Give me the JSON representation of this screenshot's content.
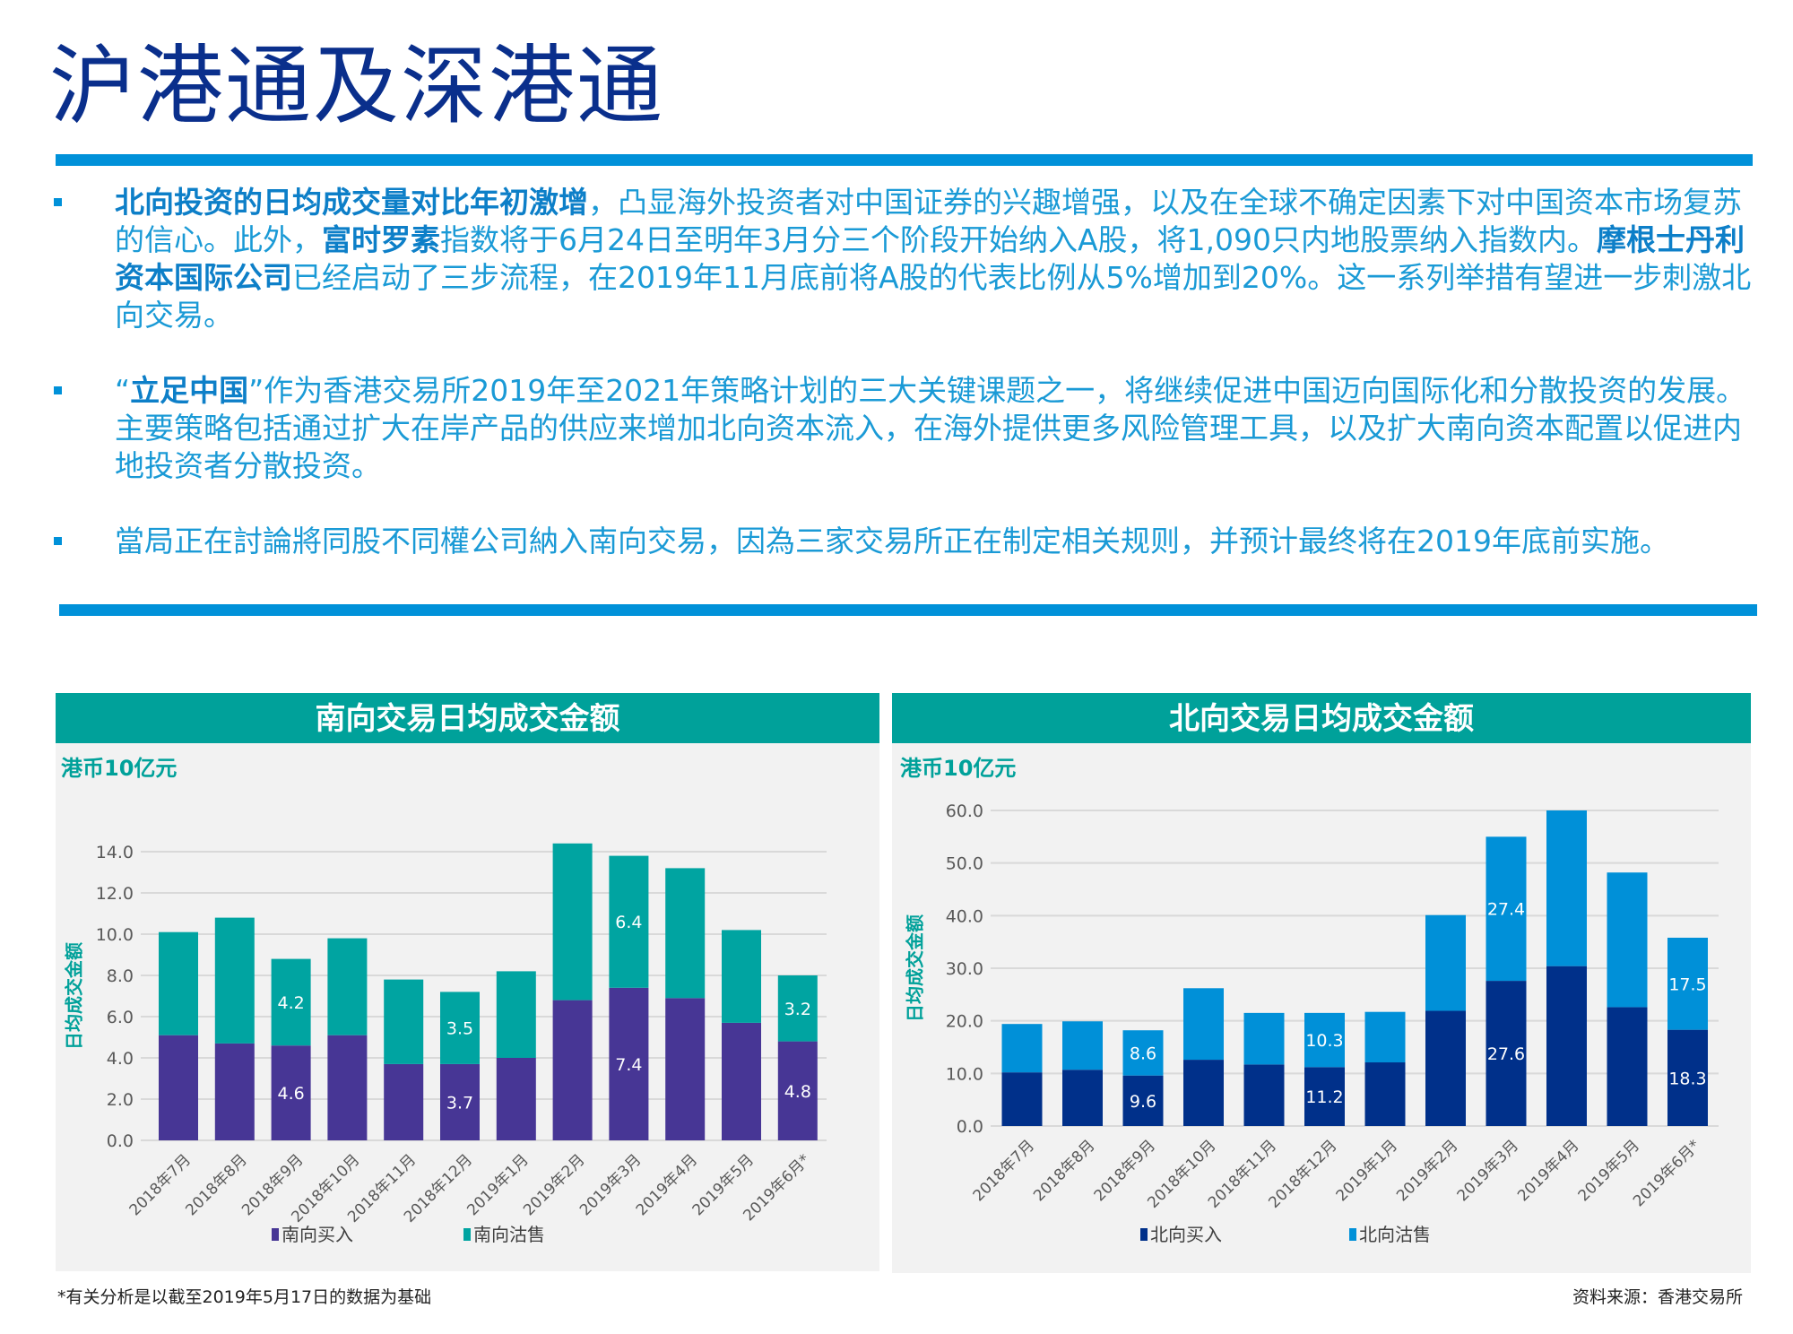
{
  "title": "沪港通及深港通",
  "bullets": [
    {
      "segments": [
        {
          "text": "北向投资的日均成交量对比年初激增",
          "bold": true
        },
        {
          "text": "，凸显海外投资者对中国证券的兴趣增强，以及在全球不确定因素下对中国资本市场复苏的信心。此外，",
          "bold": false
        },
        {
          "text": "富时罗素",
          "bold": true
        },
        {
          "text": "指数将于6月24日至明年3月分三个阶段开始纳入A股，将1,090只内地股票纳入指数内。",
          "bold": false
        },
        {
          "text": "摩根士丹利资本国际公司",
          "bold": true
        },
        {
          "text": "已经启动了三步流程，在2019年11月底前将A股的代表比例从5%增加到20%。这一系列举措有望进一步刺激北向交易。",
          "bold": false
        }
      ]
    },
    {
      "segments": [
        {
          "text": "“",
          "bold": false
        },
        {
          "text": "立足中国",
          "bold": true
        },
        {
          "text": "”作为香港交易所2019年至2021年策略计划的三大关键课题之一，将继续促进中国迈向国际化和分散投资的发展。主要策略包括通过扩大在岸产品的供应来增加北向资本流入，在海外提供更多风险管理工具，以及扩大南向资本配置以促进内地投资者分散投资。",
          "bold": false
        }
      ]
    },
    {
      "segments": [
        {
          "text": "當局正在討論將同股不同權公司納入南向交易，因為三家交易所正在制定相关规则，并预计最终将在2019年底前实施。",
          "bold": false
        }
      ]
    }
  ],
  "colors": {
    "title": "#0a2f8c",
    "rule": "#0091d9",
    "panel_header": "#00a19a",
    "text": "#1a9ad6"
  },
  "chart_data": [
    {
      "type": "bar",
      "stacked": true,
      "title": "南向交易日均成交金额",
      "unit": "港币10亿元",
      "ylabel": "日均成交金额",
      "ylim": [
        0,
        14
      ],
      "yticks": [
        "0.0",
        "2.0",
        "4.0",
        "6.0",
        "8.0",
        "10.0",
        "12.0",
        "14.0"
      ],
      "grid": true,
      "legend": "bottom",
      "categories": [
        "2018年7月",
        "2018年8月",
        "2018年9月",
        "2018年10月",
        "2018年11月",
        "2018年12月",
        "2019年1月",
        "2019年2月",
        "2019年3月",
        "2019年4月",
        "2019年5月",
        "2019年6月*"
      ],
      "series": [
        {
          "name": "南向买入",
          "color": "#473695",
          "values": [
            5.1,
            4.7,
            4.6,
            5.1,
            3.7,
            3.7,
            4.0,
            6.8,
            7.4,
            6.9,
            5.7,
            4.8
          ],
          "data_labels": [
            null,
            null,
            "4.6",
            null,
            null,
            "3.7",
            null,
            null,
            "7.4",
            null,
            null,
            "4.8"
          ]
        },
        {
          "name": "南向沽售",
          "color": "#00a4a1",
          "values": [
            5.0,
            6.1,
            4.2,
            4.7,
            4.1,
            3.5,
            4.2,
            7.6,
            6.4,
            6.3,
            4.5,
            3.2
          ],
          "data_labels": [
            null,
            null,
            "4.2",
            null,
            null,
            "3.5",
            null,
            null,
            "6.4",
            null,
            null,
            "3.2"
          ]
        }
      ]
    },
    {
      "type": "bar",
      "stacked": true,
      "title": "北向交易日均成交金额",
      "unit": "港币10亿元",
      "ylabel": "日均成交金额",
      "ylim": [
        0,
        60
      ],
      "yticks": [
        "0.0",
        "10.0",
        "20.0",
        "30.0",
        "40.0",
        "50.0",
        "60.0"
      ],
      "grid": true,
      "legend": "bottom",
      "categories": [
        "2018年7月",
        "2018年8月",
        "2018年9月",
        "2018年10月",
        "2018年11月",
        "2018年12月",
        "2019年1月",
        "2019年2月",
        "2019年3月",
        "2019年4月",
        "2019年5月",
        "2019年6月*"
      ],
      "series": [
        {
          "name": "北向买入",
          "color": "#00308a",
          "values": [
            10.2,
            10.7,
            9.6,
            12.6,
            11.7,
            11.2,
            12.1,
            21.9,
            27.6,
            30.4,
            22.6,
            18.3
          ],
          "data_labels": [
            null,
            null,
            "9.6",
            null,
            null,
            "11.2",
            null,
            null,
            "27.6",
            null,
            null,
            "18.3"
          ]
        },
        {
          "name": "北向沽售",
          "color": "#0090d8",
          "values": [
            9.2,
            9.2,
            8.6,
            13.6,
            9.8,
            10.3,
            9.6,
            18.2,
            27.4,
            29.6,
            25.6,
            17.5
          ],
          "data_labels": [
            null,
            null,
            "8.6",
            null,
            null,
            "10.3",
            null,
            null,
            "27.4",
            null,
            null,
            "17.5"
          ]
        }
      ]
    }
  ],
  "footnote": "*有关分析是以截至2019年5月17日的数据为基础",
  "source": "资料来源：香港交易所"
}
